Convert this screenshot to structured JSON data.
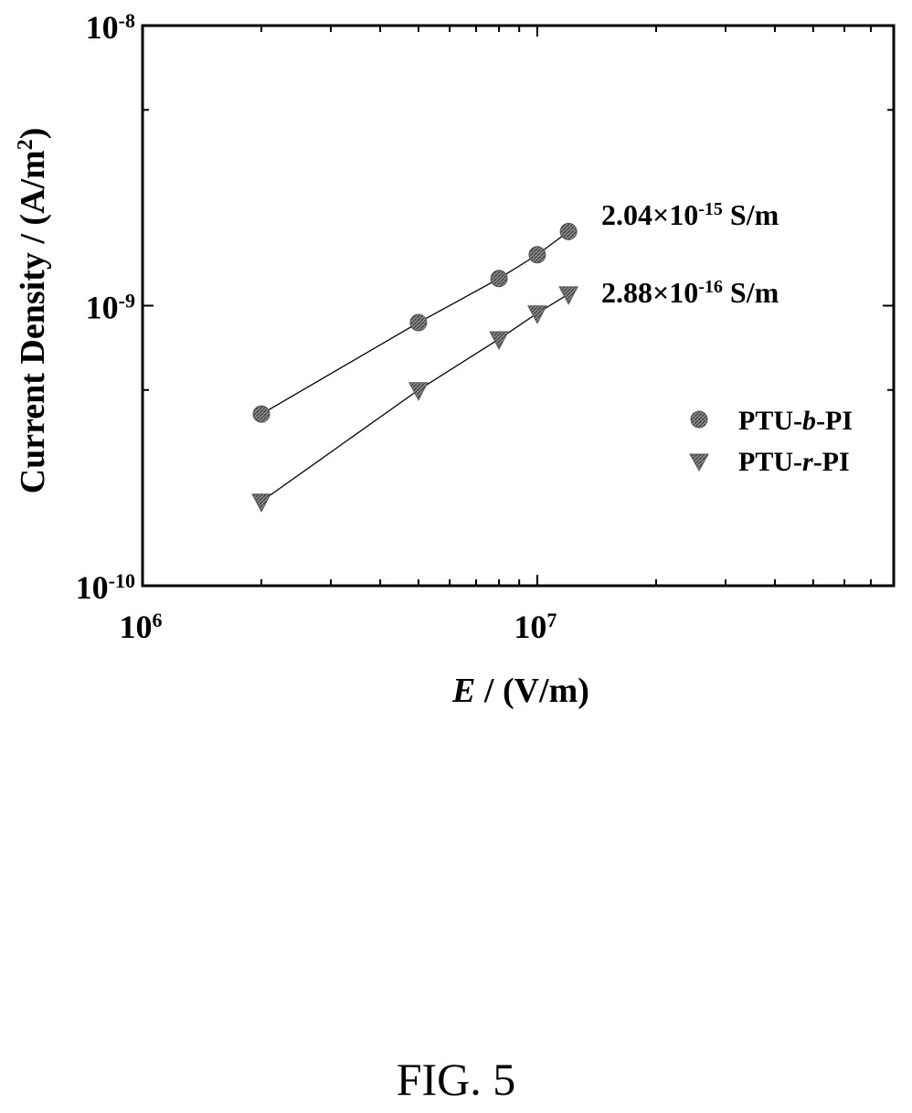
{
  "figure_caption": "FIG. 5",
  "chart_data": {
    "type": "scatter",
    "x_scale": "log",
    "y_scale": "log",
    "xlim": [
      1000000,
      80000000
    ],
    "ylim": [
      1e-10,
      1e-08
    ],
    "xlabel": {
      "italic": "E",
      "rest": " / (V/m)"
    },
    "ylabel": {
      "base": "Current Density / (A/m",
      "sup": "2",
      "end": ")"
    },
    "x_ticks": [
      {
        "value": 1000000,
        "base": "10",
        "exp": "6"
      },
      {
        "value": 10000000,
        "base": "10",
        "exp": "7"
      }
    ],
    "y_ticks": [
      {
        "value": 1e-10,
        "base": "10",
        "exp": "-10"
      },
      {
        "value": 1e-09,
        "base": "10",
        "exp": "-9"
      },
      {
        "value": 1e-08,
        "base": "10",
        "exp": "-8"
      }
    ],
    "grid": false,
    "legend_position": "right",
    "series": [
      {
        "legend": {
          "pre": "PTU-",
          "italic": "b",
          "post": "-PI"
        },
        "marker": "circle",
        "conductivity": {
          "mantissa": "2.04×10",
          "exp": "-15",
          "unit": " S/m"
        },
        "x": [
          2000000,
          5000000,
          8000000,
          10000000,
          12000000
        ],
        "y": [
          4.1e-10,
          8.7e-10,
          1.25e-09,
          1.52e-09,
          1.84e-09
        ]
      },
      {
        "legend": {
          "pre": "PTU-",
          "italic": "r",
          "post": "-PI"
        },
        "marker": "triangle-down",
        "conductivity": {
          "mantissa": "2.88×10",
          "exp": "-16",
          "unit": " S/m"
        },
        "x": [
          2000000,
          5000000,
          8000000,
          10000000,
          12000000
        ],
        "y": [
          2e-10,
          5e-10,
          7.6e-10,
          9.4e-10,
          1.1e-09
        ]
      }
    ]
  }
}
